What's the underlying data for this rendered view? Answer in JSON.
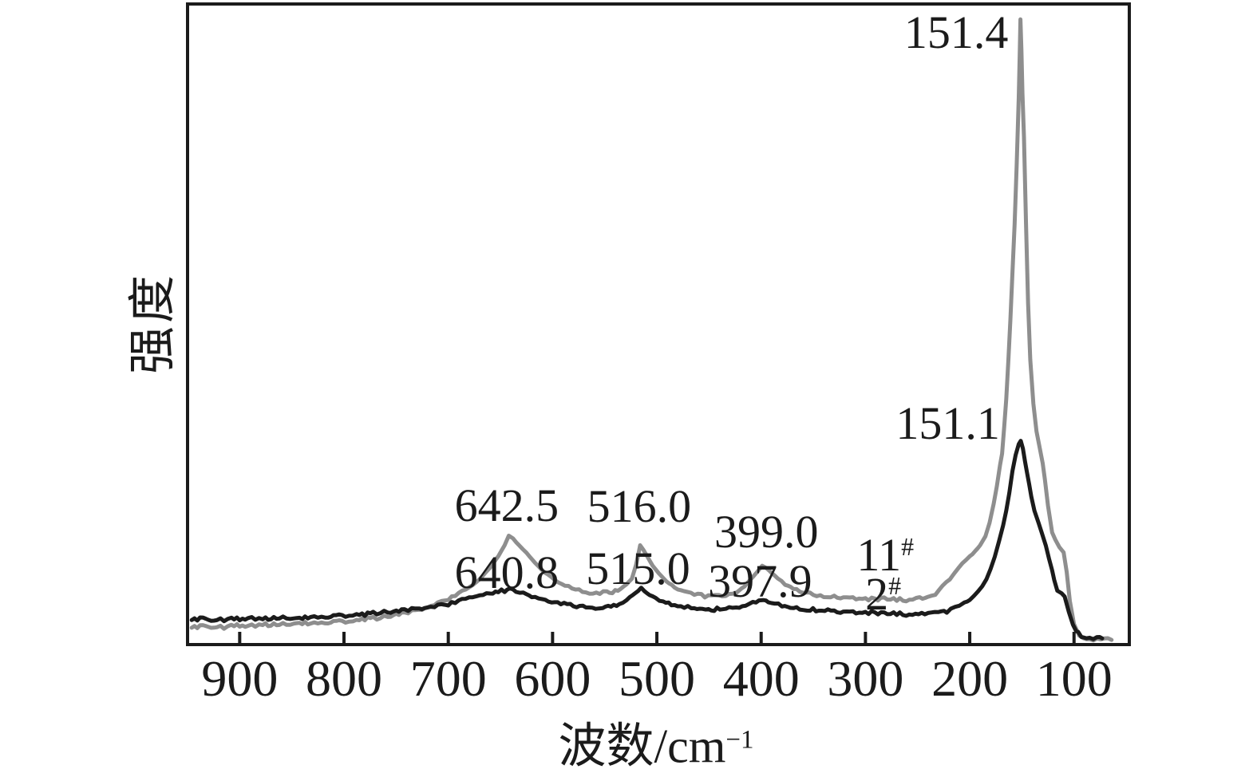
{
  "figure": {
    "background": "#ffffff",
    "frame_color": "#1b1b1b"
  },
  "chart_data": {
    "type": "line",
    "title": "",
    "xlabel": {
      "text": "波数/cm",
      "sup": "−1"
    },
    "ylabel": "强度",
    "x_ticks": [
      900,
      800,
      700,
      600,
      500,
      400,
      300,
      200,
      100
    ],
    "x_range": [
      950,
      47
    ],
    "x_direction": "reversed",
    "ylim": [
      0,
      1000
    ],
    "grid": false,
    "legend": "none",
    "series": [
      {
        "name": "11#",
        "label": {
          "text": "11",
          "sup": "#"
        },
        "color": "#8e8e8e",
        "points": [
          [
            946,
            27
          ],
          [
            938,
            28
          ],
          [
            930,
            29
          ],
          [
            922,
            28
          ],
          [
            915,
            27
          ],
          [
            908,
            29
          ],
          [
            900,
            30
          ],
          [
            892,
            29
          ],
          [
            885,
            30
          ],
          [
            878,
            31
          ],
          [
            870,
            31
          ],
          [
            862,
            32
          ],
          [
            855,
            32
          ],
          [
            848,
            33
          ],
          [
            840,
            34
          ],
          [
            832,
            33
          ],
          [
            825,
            34
          ],
          [
            818,
            35
          ],
          [
            810,
            36
          ],
          [
            802,
            36
          ],
          [
            795,
            37
          ],
          [
            788,
            38
          ],
          [
            780,
            40
          ],
          [
            772,
            41
          ],
          [
            765,
            42
          ],
          [
            758,
            44
          ],
          [
            750,
            47
          ],
          [
            742,
            49
          ],
          [
            735,
            52
          ],
          [
            728,
            55
          ],
          [
            720,
            58
          ],
          [
            710,
            65
          ],
          [
            700,
            71
          ],
          [
            690,
            80
          ],
          [
            680,
            88
          ],
          [
            670,
            102
          ],
          [
            660,
            120
          ],
          [
            652,
            138
          ],
          [
            646,
            155
          ],
          [
            642,
            170
          ],
          [
            638,
            165
          ],
          [
            632,
            155
          ],
          [
            625,
            143
          ],
          [
            617,
            128
          ],
          [
            608,
            113
          ],
          [
            598,
            101
          ],
          [
            588,
            92
          ],
          [
            578,
            86
          ],
          [
            568,
            82
          ],
          [
            558,
            81
          ],
          [
            548,
            81
          ],
          [
            540,
            83
          ],
          [
            532,
            89
          ],
          [
            524,
            103
          ],
          [
            520,
            124
          ],
          [
            517,
            147
          ],
          [
            516,
            155
          ],
          [
            513,
            148
          ],
          [
            509,
            137
          ],
          [
            504,
            123
          ],
          [
            498,
            111
          ],
          [
            491,
            99
          ],
          [
            483,
            89
          ],
          [
            474,
            83
          ],
          [
            464,
            78
          ],
          [
            454,
            76
          ],
          [
            444,
            75
          ],
          [
            434,
            76
          ],
          [
            424,
            81
          ],
          [
            416,
            91
          ],
          [
            410,
            102
          ],
          [
            404,
            113
          ],
          [
            399,
            123
          ],
          [
            395,
            119
          ],
          [
            390,
            112
          ],
          [
            384,
            103
          ],
          [
            377,
            94
          ],
          [
            369,
            87
          ],
          [
            360,
            82
          ],
          [
            350,
            78
          ],
          [
            340,
            76
          ],
          [
            330,
            75
          ],
          [
            318,
            73
          ],
          [
            306,
            72
          ],
          [
            294,
            71
          ],
          [
            282,
            71
          ],
          [
            270,
            70
          ],
          [
            258,
            70
          ],
          [
            248,
            72
          ],
          [
            240,
            73
          ],
          [
            233,
            78
          ],
          [
            226,
            92
          ],
          [
            219,
            102
          ],
          [
            214,
            113
          ],
          [
            207,
            127
          ],
          [
            200,
            138
          ],
          [
            195,
            145
          ],
          [
            190,
            155
          ],
          [
            185,
            169
          ],
          [
            181,
            190
          ],
          [
            177,
            220
          ],
          [
            174,
            247
          ],
          [
            171,
            280
          ],
          [
            169,
            298
          ],
          [
            167,
            339
          ],
          [
            165,
            383
          ],
          [
            163,
            442
          ],
          [
            161,
            507
          ],
          [
            159,
            581
          ],
          [
            157,
            656
          ],
          [
            155,
            749
          ],
          [
            153,
            855
          ],
          [
            152,
            927
          ],
          [
            151.4,
            976
          ],
          [
            150.5,
            929
          ],
          [
            149.5,
            861
          ],
          [
            148,
            793
          ],
          [
            146,
            656
          ],
          [
            144,
            532
          ],
          [
            142,
            445
          ],
          [
            139,
            376
          ],
          [
            136,
            333
          ],
          [
            133,
            308
          ],
          [
            130,
            283
          ],
          [
            128,
            258
          ],
          [
            125,
            217
          ],
          [
            121,
            175
          ],
          [
            118,
            164
          ],
          [
            114,
            152
          ],
          [
            110,
            144
          ],
          [
            107,
            113
          ],
          [
            104,
            68
          ],
          [
            100,
            32
          ],
          [
            97,
            21
          ],
          [
            95,
            14
          ],
          [
            91,
            9
          ],
          [
            85,
            7
          ],
          [
            78,
            7
          ],
          [
            71,
            7
          ],
          [
            64,
            9
          ]
        ]
      },
      {
        "name": "2#",
        "label": {
          "text": "2",
          "sup": "#"
        },
        "color": "#1b1b1b",
        "points": [
          [
            946,
            39
          ],
          [
            938,
            40
          ],
          [
            930,
            40
          ],
          [
            922,
            39
          ],
          [
            915,
            39
          ],
          [
            908,
            40
          ],
          [
            900,
            40
          ],
          [
            892,
            41
          ],
          [
            885,
            41
          ],
          [
            878,
            40
          ],
          [
            870,
            41
          ],
          [
            862,
            42
          ],
          [
            855,
            42
          ],
          [
            848,
            41
          ],
          [
            840,
            42
          ],
          [
            832,
            43
          ],
          [
            825,
            43
          ],
          [
            818,
            44
          ],
          [
            810,
            45
          ],
          [
            802,
            45
          ],
          [
            795,
            46
          ],
          [
            788,
            47
          ],
          [
            780,
            47
          ],
          [
            772,
            49
          ],
          [
            765,
            50
          ],
          [
            758,
            51
          ],
          [
            750,
            52
          ],
          [
            742,
            54
          ],
          [
            735,
            55
          ],
          [
            728,
            57
          ],
          [
            720,
            58
          ],
          [
            710,
            61
          ],
          [
            700,
            63
          ],
          [
            690,
            68
          ],
          [
            680,
            72
          ],
          [
            670,
            77
          ],
          [
            660,
            81
          ],
          [
            652,
            83
          ],
          [
            646,
            84
          ],
          [
            641,
            86
          ],
          [
            635,
            83
          ],
          [
            628,
            80
          ],
          [
            620,
            76
          ],
          [
            610,
            71
          ],
          [
            598,
            66
          ],
          [
            586,
            62
          ],
          [
            574,
            60
          ],
          [
            562,
            57
          ],
          [
            552,
            57
          ],
          [
            544,
            60
          ],
          [
            536,
            63
          ],
          [
            529,
            70
          ],
          [
            523,
            77
          ],
          [
            518,
            84
          ],
          [
            515,
            88
          ],
          [
            512,
            84
          ],
          [
            507,
            78
          ],
          [
            501,
            72
          ],
          [
            494,
            67
          ],
          [
            486,
            63
          ],
          [
            477,
            60
          ],
          [
            467,
            57
          ],
          [
            456,
            56
          ],
          [
            445,
            55
          ],
          [
            434,
            56
          ],
          [
            424,
            58
          ],
          [
            415,
            62
          ],
          [
            408,
            65
          ],
          [
            402,
            67
          ],
          [
            398,
            70
          ],
          [
            393,
            67
          ],
          [
            387,
            63
          ],
          [
            380,
            61
          ],
          [
            372,
            58
          ],
          [
            363,
            56
          ],
          [
            353,
            55
          ],
          [
            342,
            53
          ],
          [
            330,
            52
          ],
          [
            318,
            51
          ],
          [
            306,
            50
          ],
          [
            294,
            50
          ],
          [
            282,
            48
          ],
          [
            270,
            48
          ],
          [
            258,
            47
          ],
          [
            246,
            47
          ],
          [
            237,
            48
          ],
          [
            230,
            50
          ],
          [
            222,
            52
          ],
          [
            218,
            55
          ],
          [
            214,
            57
          ],
          [
            210,
            61
          ],
          [
            205,
            65
          ],
          [
            200,
            70
          ],
          [
            196,
            76
          ],
          [
            192,
            83
          ],
          [
            188,
            91
          ],
          [
            184,
            102
          ],
          [
            180,
            118
          ],
          [
            176,
            137
          ],
          [
            172,
            161
          ],
          [
            168,
            186
          ],
          [
            165,
            209
          ],
          [
            162,
            237
          ],
          [
            159,
            271
          ],
          [
            156,
            296
          ],
          [
            153,
            313
          ],
          [
            151.1,
            318
          ],
          [
            149,
            306
          ],
          [
            147,
            286
          ],
          [
            145,
            268
          ],
          [
            143,
            250
          ],
          [
            141,
            231
          ],
          [
            138,
            209
          ],
          [
            134,
            190
          ],
          [
            131,
            175
          ],
          [
            127,
            154
          ],
          [
            124,
            134
          ],
          [
            121,
            116
          ],
          [
            119,
            101
          ],
          [
            116,
            84
          ],
          [
            112,
            80
          ],
          [
            109,
            75
          ],
          [
            105,
            51
          ],
          [
            101,
            31
          ],
          [
            98,
            21
          ],
          [
            96,
            19
          ],
          [
            93,
            12
          ],
          [
            91,
            10
          ],
          [
            85,
            9
          ],
          [
            78,
            9
          ],
          [
            73,
            10
          ]
        ]
      }
    ],
    "peak_annotations": [
      {
        "text": "151.4",
        "x": 213,
        "y": 955
      },
      {
        "text": "151.1",
        "x": 221,
        "y": 345
      },
      {
        "text": "642.5",
        "x": 644,
        "y": 217
      },
      {
        "text": "640.8",
        "x": 644,
        "y": 112
      },
      {
        "text": "516.0",
        "x": 517,
        "y": 216
      },
      {
        "text": "515.0",
        "x": 518,
        "y": 118
      },
      {
        "text": "399.0",
        "x": 395,
        "y": 176
      },
      {
        "text": "397.9",
        "x": 401,
        "y": 99
      },
      {
        "text": "11",
        "sup": "#",
        "x": 281,
        "y": 140
      },
      {
        "text": "2",
        "sup": "#",
        "x": 283,
        "y": 78
      }
    ]
  }
}
